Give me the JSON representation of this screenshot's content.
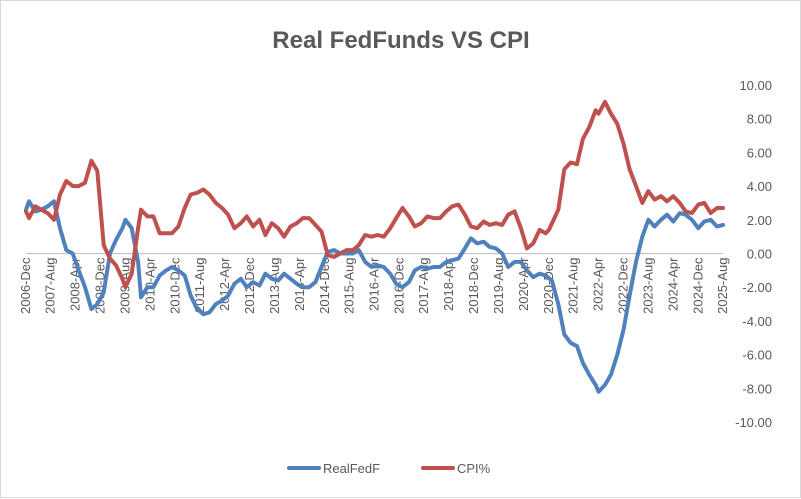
{
  "chart_data": {
    "type": "line",
    "title": "Real FedFunds VS CPI",
    "xlabel": "",
    "ylabel": "",
    "ylim": [
      -10,
      10
    ],
    "y_ticks": [
      "10.00",
      "8.00",
      "6.00",
      "4.00",
      "2.00",
      "0.00",
      "-2.00",
      "-4.00",
      "-6.00",
      "-8.00",
      "-10.00"
    ],
    "x_range": [
      2006.92,
      2025.58
    ],
    "x_ticks": [
      {
        "label": "2006-Dec",
        "t": 2006.92
      },
      {
        "label": "2007-Aug",
        "t": 2007.58
      },
      {
        "label": "2008-Apr",
        "t": 2008.25
      },
      {
        "label": "2008-Dec",
        "t": 2008.92
      },
      {
        "label": "2009-Aug",
        "t": 2009.58
      },
      {
        "label": "2010-Apr",
        "t": 2010.25
      },
      {
        "label": "2010-Dec",
        "t": 2010.92
      },
      {
        "label": "2011-Aug",
        "t": 2011.58
      },
      {
        "label": "2012-Apr",
        "t": 2012.25
      },
      {
        "label": "2012-Dec",
        "t": 2012.92
      },
      {
        "label": "2013-Aug",
        "t": 2013.58
      },
      {
        "label": "2014-Apr",
        "t": 2014.25
      },
      {
        "label": "2014-Dec",
        "t": 2014.92
      },
      {
        "label": "2015-Aug",
        "t": 2015.58
      },
      {
        "label": "2016-Apr",
        "t": 2016.25
      },
      {
        "label": "2016-Dec",
        "t": 2016.92
      },
      {
        "label": "2017-Aug",
        "t": 2017.58
      },
      {
        "label": "2018-Apr",
        "t": 2018.25
      },
      {
        "label": "2018-Dec",
        "t": 2018.92
      },
      {
        "label": "2019-Aug",
        "t": 2019.58
      },
      {
        "label": "2020-Apr",
        "t": 2020.25
      },
      {
        "label": "2020-Dec",
        "t": 2020.92
      },
      {
        "label": "2021-Aug",
        "t": 2021.58
      },
      {
        "label": "2022-Apr",
        "t": 2022.25
      },
      {
        "label": "2022-Dec",
        "t": 2022.92
      },
      {
        "label": "2023-Aug",
        "t": 2023.58
      },
      {
        "label": "2024-Apr",
        "t": 2024.25
      },
      {
        "label": "2024-Dec",
        "t": 2024.92
      },
      {
        "label": "2025-Aug",
        "t": 2025.58
      }
    ],
    "series": [
      {
        "name": "RealFedF",
        "color": "#4f81bd",
        "points": [
          [
            2006.92,
            2.6
          ],
          [
            2007.0,
            3.1
          ],
          [
            2007.17,
            2.5
          ],
          [
            2007.33,
            2.6
          ],
          [
            2007.5,
            2.8
          ],
          [
            2007.67,
            3.1
          ],
          [
            2007.83,
            1.5
          ],
          [
            2008.0,
            0.2
          ],
          [
            2008.17,
            0.0
          ],
          [
            2008.33,
            -1.0
          ],
          [
            2008.5,
            -2.0
          ],
          [
            2008.67,
            -3.3
          ],
          [
            2008.83,
            -3.0
          ],
          [
            2009.0,
            -2.3
          ],
          [
            2009.17,
            0.0
          ],
          [
            2009.33,
            0.8
          ],
          [
            2009.5,
            1.5
          ],
          [
            2009.58,
            2.0
          ],
          [
            2009.75,
            1.5
          ],
          [
            2009.92,
            -0.5
          ],
          [
            2010.0,
            -2.6
          ],
          [
            2010.17,
            -2.0
          ],
          [
            2010.33,
            -2.0
          ],
          [
            2010.5,
            -1.3
          ],
          [
            2010.67,
            -1.0
          ],
          [
            2010.83,
            -0.8
          ],
          [
            2011.0,
            -1.0
          ],
          [
            2011.17,
            -1.3
          ],
          [
            2011.33,
            -2.5
          ],
          [
            2011.5,
            -3.3
          ],
          [
            2011.67,
            -3.6
          ],
          [
            2011.83,
            -3.5
          ],
          [
            2012.0,
            -3.0
          ],
          [
            2012.17,
            -2.8
          ],
          [
            2012.33,
            -2.5
          ],
          [
            2012.5,
            -1.8
          ],
          [
            2012.67,
            -1.5
          ],
          [
            2012.83,
            -2.0
          ],
          [
            2013.0,
            -1.7
          ],
          [
            2013.17,
            -1.9
          ],
          [
            2013.33,
            -1.2
          ],
          [
            2013.5,
            -1.5
          ],
          [
            2013.67,
            -1.6
          ],
          [
            2013.83,
            -1.2
          ],
          [
            2014.0,
            -1.5
          ],
          [
            2014.17,
            -1.8
          ],
          [
            2014.33,
            -2.0
          ],
          [
            2014.5,
            -2.0
          ],
          [
            2014.67,
            -1.7
          ],
          [
            2014.83,
            -0.8
          ],
          [
            2015.0,
            0.1
          ],
          [
            2015.17,
            0.2
          ],
          [
            2015.33,
            0.0
          ],
          [
            2015.5,
            0.0
          ],
          [
            2015.67,
            0.0
          ],
          [
            2015.83,
            0.2
          ],
          [
            2016.0,
            -0.5
          ],
          [
            2016.17,
            -0.8
          ],
          [
            2016.33,
            -0.7
          ],
          [
            2016.5,
            -0.8
          ],
          [
            2016.67,
            -1.2
          ],
          [
            2016.83,
            -1.8
          ],
          [
            2017.0,
            -2.0
          ],
          [
            2017.17,
            -1.7
          ],
          [
            2017.33,
            -1.0
          ],
          [
            2017.5,
            -0.8
          ],
          [
            2017.67,
            -0.9
          ],
          [
            2017.83,
            -0.8
          ],
          [
            2018.0,
            -0.8
          ],
          [
            2018.17,
            -0.5
          ],
          [
            2018.33,
            -0.4
          ],
          [
            2018.5,
            -0.3
          ],
          [
            2018.67,
            0.3
          ],
          [
            2018.83,
            0.9
          ],
          [
            2019.0,
            0.6
          ],
          [
            2019.17,
            0.7
          ],
          [
            2019.33,
            0.4
          ],
          [
            2019.5,
            0.3
          ],
          [
            2019.67,
            0.0
          ],
          [
            2019.83,
            -0.8
          ],
          [
            2020.0,
            -0.5
          ],
          [
            2020.17,
            -0.5
          ],
          [
            2020.33,
            -1.0
          ],
          [
            2020.5,
            -1.4
          ],
          [
            2020.67,
            -1.2
          ],
          [
            2020.83,
            -1.3
          ],
          [
            2021.0,
            -1.6
          ],
          [
            2021.17,
            -3.0
          ],
          [
            2021.33,
            -4.8
          ],
          [
            2021.5,
            -5.3
          ],
          [
            2021.67,
            -5.5
          ],
          [
            2021.83,
            -6.5
          ],
          [
            2022.0,
            -7.2
          ],
          [
            2022.17,
            -7.8
          ],
          [
            2022.25,
            -8.2
          ],
          [
            2022.42,
            -7.8
          ],
          [
            2022.58,
            -7.2
          ],
          [
            2022.75,
            -6.0
          ],
          [
            2022.92,
            -4.5
          ],
          [
            2023.08,
            -2.5
          ],
          [
            2023.25,
            -0.5
          ],
          [
            2023.42,
            1.0
          ],
          [
            2023.58,
            2.0
          ],
          [
            2023.75,
            1.6
          ],
          [
            2023.92,
            2.0
          ],
          [
            2024.08,
            2.3
          ],
          [
            2024.25,
            1.9
          ],
          [
            2024.42,
            2.4
          ],
          [
            2024.58,
            2.3
          ],
          [
            2024.75,
            2.0
          ],
          [
            2024.92,
            1.5
          ],
          [
            2025.08,
            1.9
          ],
          [
            2025.25,
            2.0
          ],
          [
            2025.42,
            1.6
          ],
          [
            2025.58,
            1.7
          ]
        ]
      },
      {
        "name": "CPI%",
        "color": "#c0504d",
        "points": [
          [
            2006.92,
            2.5
          ],
          [
            2007.0,
            2.1
          ],
          [
            2007.17,
            2.8
          ],
          [
            2007.33,
            2.6
          ],
          [
            2007.5,
            2.4
          ],
          [
            2007.67,
            2.0
          ],
          [
            2007.83,
            3.5
          ],
          [
            2008.0,
            4.3
          ],
          [
            2008.17,
            4.0
          ],
          [
            2008.33,
            4.0
          ],
          [
            2008.5,
            4.2
          ],
          [
            2008.67,
            5.5
          ],
          [
            2008.83,
            4.9
          ],
          [
            2009.0,
            0.5
          ],
          [
            2009.17,
            -0.3
          ],
          [
            2009.33,
            -0.7
          ],
          [
            2009.5,
            -1.5
          ],
          [
            2009.58,
            -2.0
          ],
          [
            2009.75,
            -1.2
          ],
          [
            2009.92,
            1.5
          ],
          [
            2010.0,
            2.6
          ],
          [
            2010.17,
            2.2
          ],
          [
            2010.33,
            2.2
          ],
          [
            2010.5,
            1.2
          ],
          [
            2010.67,
            1.2
          ],
          [
            2010.83,
            1.2
          ],
          [
            2011.0,
            1.6
          ],
          [
            2011.17,
            2.7
          ],
          [
            2011.33,
            3.5
          ],
          [
            2011.5,
            3.6
          ],
          [
            2011.67,
            3.8
          ],
          [
            2011.83,
            3.5
          ],
          [
            2012.0,
            3.0
          ],
          [
            2012.17,
            2.7
          ],
          [
            2012.33,
            2.3
          ],
          [
            2012.5,
            1.5
          ],
          [
            2012.67,
            1.8
          ],
          [
            2012.83,
            2.2
          ],
          [
            2013.0,
            1.6
          ],
          [
            2013.17,
            2.0
          ],
          [
            2013.33,
            1.1
          ],
          [
            2013.5,
            1.8
          ],
          [
            2013.67,
            1.5
          ],
          [
            2013.83,
            1.0
          ],
          [
            2014.0,
            1.6
          ],
          [
            2014.17,
            1.8
          ],
          [
            2014.33,
            2.1
          ],
          [
            2014.5,
            2.1
          ],
          [
            2014.67,
            1.7
          ],
          [
            2014.83,
            1.3
          ],
          [
            2015.0,
            -0.1
          ],
          [
            2015.17,
            -0.2
          ],
          [
            2015.33,
            0.0
          ],
          [
            2015.5,
            0.2
          ],
          [
            2015.67,
            0.2
          ],
          [
            2015.83,
            0.5
          ],
          [
            2016.0,
            1.1
          ],
          [
            2016.17,
            1.0
          ],
          [
            2016.33,
            1.1
          ],
          [
            2016.5,
            1.0
          ],
          [
            2016.67,
            1.5
          ],
          [
            2016.83,
            2.1
          ],
          [
            2017.0,
            2.7
          ],
          [
            2017.17,
            2.2
          ],
          [
            2017.33,
            1.6
          ],
          [
            2017.5,
            1.8
          ],
          [
            2017.67,
            2.2
          ],
          [
            2017.83,
            2.1
          ],
          [
            2018.0,
            2.1
          ],
          [
            2018.17,
            2.5
          ],
          [
            2018.33,
            2.8
          ],
          [
            2018.5,
            2.9
          ],
          [
            2018.67,
            2.3
          ],
          [
            2018.83,
            1.6
          ],
          [
            2019.0,
            1.5
          ],
          [
            2019.17,
            1.9
          ],
          [
            2019.33,
            1.7
          ],
          [
            2019.5,
            1.8
          ],
          [
            2019.67,
            1.7
          ],
          [
            2019.83,
            2.3
          ],
          [
            2020.0,
            2.5
          ],
          [
            2020.17,
            1.5
          ],
          [
            2020.33,
            0.3
          ],
          [
            2020.5,
            0.6
          ],
          [
            2020.67,
            1.4
          ],
          [
            2020.83,
            1.2
          ],
          [
            2020.92,
            1.4
          ],
          [
            2021.17,
            2.6
          ],
          [
            2021.33,
            5.0
          ],
          [
            2021.5,
            5.4
          ],
          [
            2021.67,
            5.3
          ],
          [
            2021.83,
            6.8
          ],
          [
            2022.0,
            7.5
          ],
          [
            2022.17,
            8.5
          ],
          [
            2022.25,
            8.3
          ],
          [
            2022.42,
            9.0
          ],
          [
            2022.58,
            8.3
          ],
          [
            2022.75,
            7.7
          ],
          [
            2022.92,
            6.5
          ],
          [
            2023.08,
            5.0
          ],
          [
            2023.25,
            4.0
          ],
          [
            2023.42,
            3.0
          ],
          [
            2023.58,
            3.7
          ],
          [
            2023.75,
            3.2
          ],
          [
            2023.92,
            3.4
          ],
          [
            2024.08,
            3.1
          ],
          [
            2024.25,
            3.4
          ],
          [
            2024.42,
            3.0
          ],
          [
            2024.58,
            2.5
          ],
          [
            2024.75,
            2.4
          ],
          [
            2024.92,
            2.9
          ],
          [
            2025.08,
            3.0
          ],
          [
            2025.25,
            2.4
          ],
          [
            2025.42,
            2.7
          ],
          [
            2025.58,
            2.7
          ]
        ]
      }
    ],
    "grid": false,
    "legend": "bottom"
  }
}
